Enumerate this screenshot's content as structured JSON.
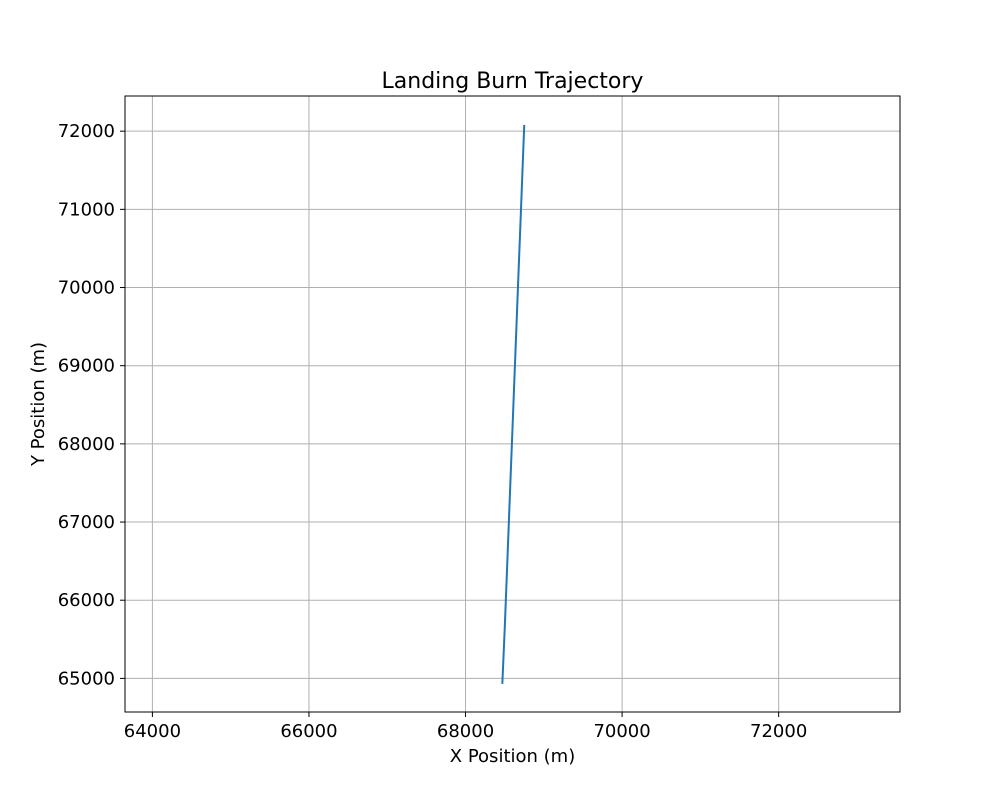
{
  "chart_data": {
    "type": "line",
    "title": "Landing Burn Trajectory",
    "xlabel": "X Position (m)",
    "ylabel": "Y Position (m)",
    "xlim": [
      63650,
      73550
    ],
    "ylim": [
      64570,
      72450
    ],
    "xticks": [
      64000,
      66000,
      68000,
      70000,
      72000
    ],
    "yticks": [
      65000,
      66000,
      67000,
      68000,
      69000,
      70000,
      71000,
      72000
    ],
    "grid": true,
    "legend": false,
    "series": [
      {
        "color": "#1f77b4",
        "x": [
          68750,
          68725,
          68700,
          68675,
          68650,
          68625,
          68600,
          68575,
          68550,
          68525,
          68500,
          68470
        ],
        "y": [
          72080,
          71430,
          70780,
          70140,
          69490,
          68850,
          68200,
          67560,
          66910,
          66260,
          65620,
          64930
        ]
      }
    ]
  }
}
